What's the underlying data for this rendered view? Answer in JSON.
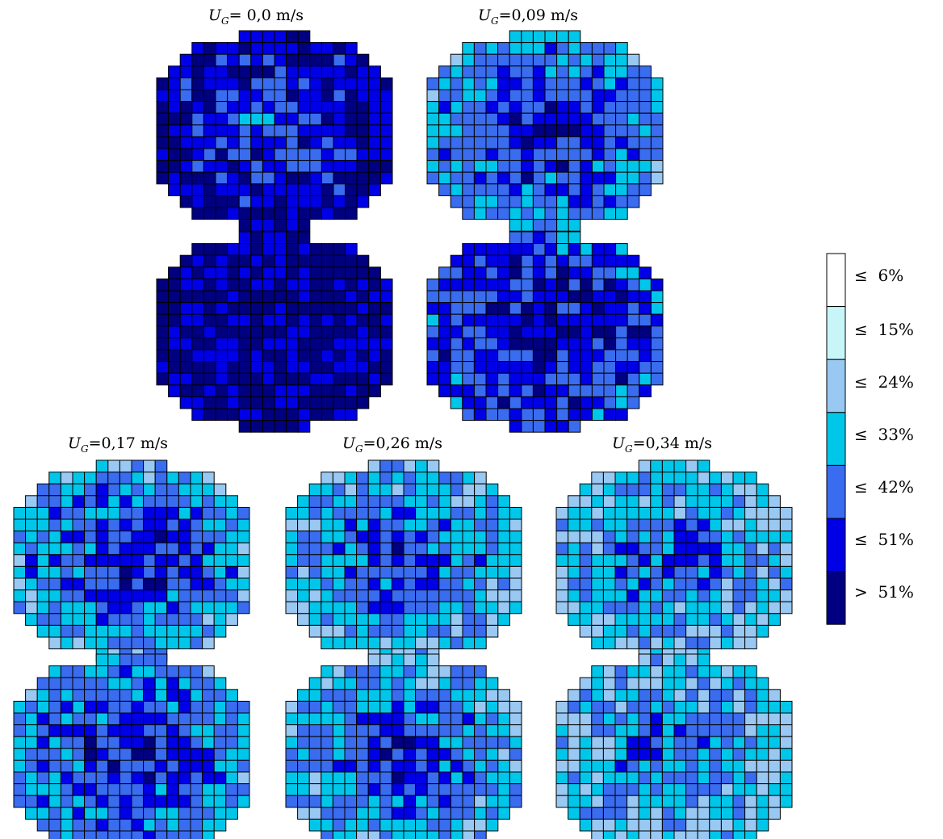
{
  "chart_data": {
    "type": "heatmap",
    "title": "",
    "xlabel": "",
    "ylabel": "",
    "variable_symbol": "U",
    "variable_subscript": "G",
    "legend": {
      "placement": "right",
      "classes": [
        {
          "symbol": "≤",
          "label": "6%",
          "color": "#ffffff"
        },
        {
          "symbol": "≤",
          "label": "15%",
          "color": "#c8f6f8"
        },
        {
          "symbol": "≤",
          "label": "24%",
          "color": "#99c8f2"
        },
        {
          "symbol": "≤",
          "label": "33%",
          "color": "#00c7ea"
        },
        {
          "symbol": "≤",
          "label": "42%",
          "color": "#3a6cf0"
        },
        {
          "symbol": "≤",
          "label": "51%",
          "color": "#0000e6"
        },
        {
          "symbol": ">",
          "label": "51%",
          "color": "#000080"
        }
      ]
    },
    "panels": [
      {
        "label": "=  0,0  m/s"
      },
      {
        "label": "=0,09 m/s"
      },
      {
        "label": "=0,17 m/s"
      },
      {
        "label": "=0,26 m/s"
      },
      {
        "label": "=0,34 m/s"
      }
    ]
  }
}
